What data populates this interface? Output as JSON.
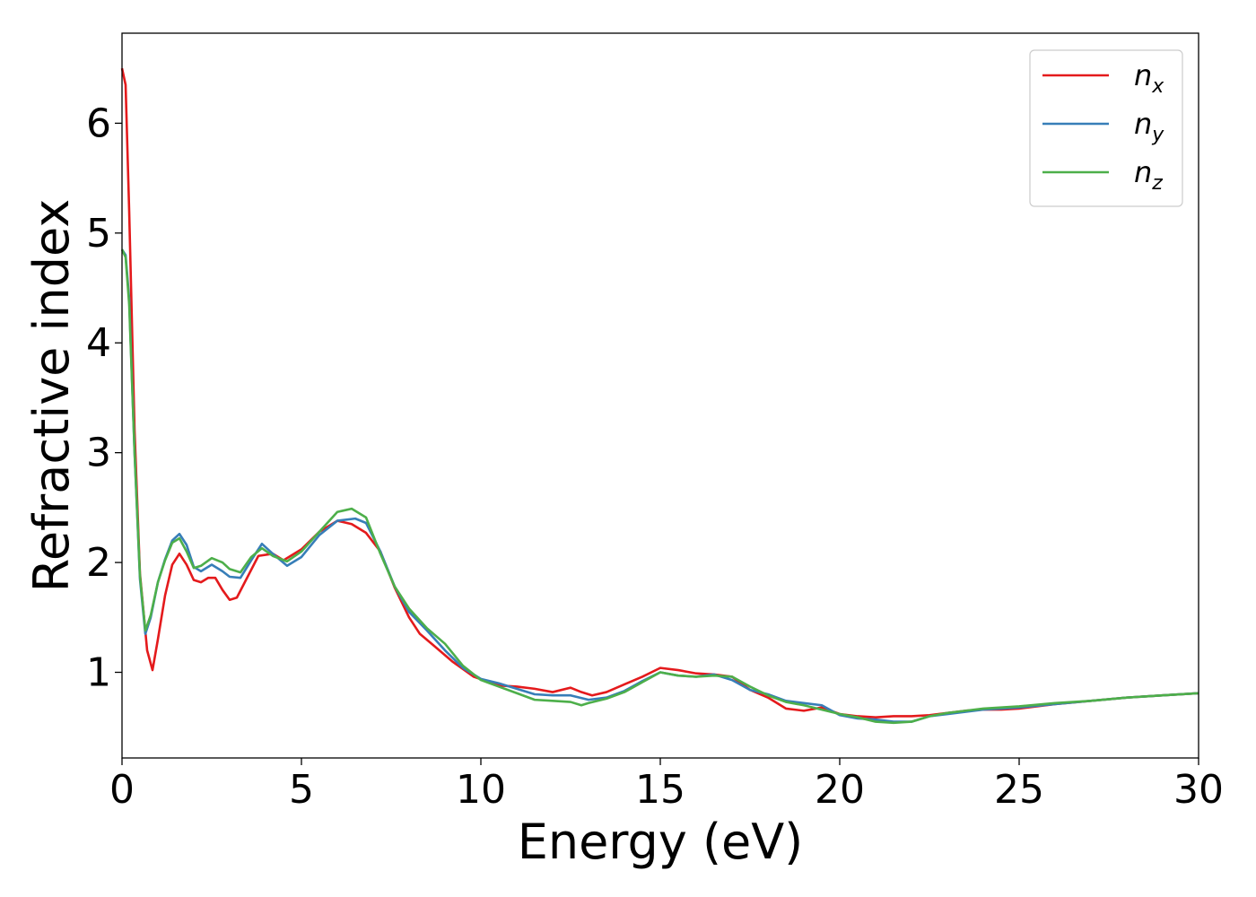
{
  "chart_data": {
    "type": "line",
    "title": "",
    "xlabel": "Energy (eV)",
    "ylabel": "Refractive index",
    "xlim": [
      0,
      30
    ],
    "ylim": [
      0.22,
      6.82
    ],
    "xticks": [
      0,
      5,
      10,
      15,
      20,
      25,
      30
    ],
    "yticks": [
      1,
      2,
      3,
      4,
      5,
      6
    ],
    "grid": false,
    "legend_position": "top-right",
    "series": [
      {
        "name": "n",
        "subscript": "x",
        "color": "#e41a1c",
        "points": [
          [
            0,
            6.5
          ],
          [
            0.1,
            6.35
          ],
          [
            0.2,
            5.2
          ],
          [
            0.35,
            3.2
          ],
          [
            0.5,
            1.9
          ],
          [
            0.7,
            1.2
          ],
          [
            0.85,
            1.02
          ],
          [
            1.0,
            1.3
          ],
          [
            1.2,
            1.7
          ],
          [
            1.4,
            1.98
          ],
          [
            1.6,
            2.08
          ],
          [
            1.8,
            1.98
          ],
          [
            2.0,
            1.84
          ],
          [
            2.2,
            1.82
          ],
          [
            2.4,
            1.86
          ],
          [
            2.6,
            1.86
          ],
          [
            2.8,
            1.75
          ],
          [
            3.0,
            1.66
          ],
          [
            3.2,
            1.68
          ],
          [
            3.5,
            1.87
          ],
          [
            3.8,
            2.06
          ],
          [
            4.2,
            2.08
          ],
          [
            4.5,
            2.02
          ],
          [
            5.0,
            2.12
          ],
          [
            5.5,
            2.28
          ],
          [
            6.0,
            2.38
          ],
          [
            6.4,
            2.35
          ],
          [
            6.8,
            2.27
          ],
          [
            7.2,
            2.1
          ],
          [
            7.6,
            1.77
          ],
          [
            8.0,
            1.5
          ],
          [
            8.3,
            1.35
          ],
          [
            8.7,
            1.24
          ],
          [
            9.2,
            1.1
          ],
          [
            9.8,
            0.96
          ],
          [
            10.5,
            0.88
          ],
          [
            11.0,
            0.87
          ],
          [
            11.5,
            0.85
          ],
          [
            12.0,
            0.82
          ],
          [
            12.5,
            0.86
          ],
          [
            12.8,
            0.82
          ],
          [
            13.1,
            0.79
          ],
          [
            13.5,
            0.82
          ],
          [
            14.0,
            0.89
          ],
          [
            14.5,
            0.96
          ],
          [
            15.0,
            1.04
          ],
          [
            15.5,
            1.02
          ],
          [
            16.0,
            0.99
          ],
          [
            16.5,
            0.98
          ],
          [
            17.0,
            0.96
          ],
          [
            17.5,
            0.84
          ],
          [
            18.0,
            0.77
          ],
          [
            18.5,
            0.67
          ],
          [
            19.0,
            0.65
          ],
          [
            19.5,
            0.68
          ],
          [
            20.0,
            0.62
          ],
          [
            20.5,
            0.6
          ],
          [
            21.0,
            0.59
          ],
          [
            21.5,
            0.6
          ],
          [
            22.0,
            0.6
          ],
          [
            22.5,
            0.61
          ],
          [
            23.0,
            0.63
          ],
          [
            23.5,
            0.65
          ],
          [
            24.0,
            0.66
          ],
          [
            24.5,
            0.66
          ],
          [
            25.0,
            0.67
          ],
          [
            26.0,
            0.71
          ],
          [
            27.0,
            0.74
          ],
          [
            28.0,
            0.77
          ],
          [
            29.0,
            0.79
          ],
          [
            30.0,
            0.81
          ]
        ]
      },
      {
        "name": "n",
        "subscript": "y",
        "color": "#377eb8",
        "points": [
          [
            0,
            4.85
          ],
          [
            0.1,
            4.8
          ],
          [
            0.2,
            4.4
          ],
          [
            0.35,
            3.0
          ],
          [
            0.5,
            1.85
          ],
          [
            0.65,
            1.35
          ],
          [
            0.8,
            1.5
          ],
          [
            1.0,
            1.82
          ],
          [
            1.2,
            2.03
          ],
          [
            1.4,
            2.2
          ],
          [
            1.6,
            2.26
          ],
          [
            1.8,
            2.16
          ],
          [
            2.0,
            1.96
          ],
          [
            2.2,
            1.92
          ],
          [
            2.5,
            1.98
          ],
          [
            2.8,
            1.92
          ],
          [
            3.0,
            1.87
          ],
          [
            3.3,
            1.86
          ],
          [
            3.6,
            2.02
          ],
          [
            3.9,
            2.17
          ],
          [
            4.2,
            2.08
          ],
          [
            4.6,
            1.97
          ],
          [
            5.0,
            2.05
          ],
          [
            5.5,
            2.25
          ],
          [
            6.0,
            2.38
          ],
          [
            6.5,
            2.4
          ],
          [
            6.8,
            2.36
          ],
          [
            7.2,
            2.1
          ],
          [
            7.6,
            1.78
          ],
          [
            8.0,
            1.55
          ],
          [
            8.5,
            1.38
          ],
          [
            9.0,
            1.2
          ],
          [
            9.5,
            1.04
          ],
          [
            10.0,
            0.94
          ],
          [
            10.5,
            0.9
          ],
          [
            11.0,
            0.85
          ],
          [
            11.5,
            0.8
          ],
          [
            12.0,
            0.79
          ],
          [
            12.5,
            0.79
          ],
          [
            13.0,
            0.75
          ],
          [
            13.5,
            0.77
          ],
          [
            14.0,
            0.83
          ],
          [
            14.5,
            0.92
          ],
          [
            15.0,
            1.0
          ],
          [
            15.5,
            0.97
          ],
          [
            16.0,
            0.96
          ],
          [
            16.5,
            0.98
          ],
          [
            17.0,
            0.93
          ],
          [
            17.5,
            0.84
          ],
          [
            18.0,
            0.8
          ],
          [
            18.5,
            0.74
          ],
          [
            19.0,
            0.72
          ],
          [
            19.5,
            0.7
          ],
          [
            20.0,
            0.61
          ],
          [
            20.5,
            0.58
          ],
          [
            21.0,
            0.57
          ],
          [
            21.5,
            0.55
          ],
          [
            22.0,
            0.55
          ],
          [
            22.5,
            0.6
          ],
          [
            23.0,
            0.62
          ],
          [
            23.5,
            0.64
          ],
          [
            24.0,
            0.66
          ],
          [
            24.5,
            0.67
          ],
          [
            25.0,
            0.68
          ],
          [
            26.0,
            0.71
          ],
          [
            27.0,
            0.74
          ],
          [
            28.0,
            0.77
          ],
          [
            29.0,
            0.79
          ],
          [
            30.0,
            0.81
          ]
        ]
      },
      {
        "name": "n",
        "subscript": "z",
        "color": "#4daf4a",
        "points": [
          [
            0,
            4.85
          ],
          [
            0.1,
            4.78
          ],
          [
            0.2,
            4.35
          ],
          [
            0.35,
            3.0
          ],
          [
            0.5,
            1.88
          ],
          [
            0.65,
            1.38
          ],
          [
            0.8,
            1.52
          ],
          [
            1.0,
            1.82
          ],
          [
            1.2,
            2.02
          ],
          [
            1.4,
            2.18
          ],
          [
            1.6,
            2.22
          ],
          [
            1.8,
            2.1
          ],
          [
            2.0,
            1.95
          ],
          [
            2.2,
            1.97
          ],
          [
            2.5,
            2.04
          ],
          [
            2.8,
            2.0
          ],
          [
            3.0,
            1.94
          ],
          [
            3.3,
            1.91
          ],
          [
            3.6,
            2.05
          ],
          [
            3.9,
            2.13
          ],
          [
            4.2,
            2.06
          ],
          [
            4.6,
            2.01
          ],
          [
            5.0,
            2.1
          ],
          [
            5.5,
            2.28
          ],
          [
            6.0,
            2.46
          ],
          [
            6.4,
            2.49
          ],
          [
            6.8,
            2.41
          ],
          [
            7.2,
            2.08
          ],
          [
            7.6,
            1.78
          ],
          [
            8.0,
            1.58
          ],
          [
            8.5,
            1.4
          ],
          [
            9.0,
            1.26
          ],
          [
            9.5,
            1.06
          ],
          [
            10.0,
            0.93
          ],
          [
            10.5,
            0.87
          ],
          [
            11.0,
            0.81
          ],
          [
            11.5,
            0.75
          ],
          [
            12.0,
            0.74
          ],
          [
            12.5,
            0.73
          ],
          [
            12.8,
            0.7
          ],
          [
            13.0,
            0.72
          ],
          [
            13.5,
            0.76
          ],
          [
            14.0,
            0.82
          ],
          [
            14.5,
            0.91
          ],
          [
            15.0,
            1.0
          ],
          [
            15.5,
            0.97
          ],
          [
            16.0,
            0.96
          ],
          [
            16.5,
            0.97
          ],
          [
            17.0,
            0.96
          ],
          [
            17.5,
            0.87
          ],
          [
            18.0,
            0.79
          ],
          [
            18.5,
            0.73
          ],
          [
            19.0,
            0.7
          ],
          [
            19.5,
            0.66
          ],
          [
            20.0,
            0.62
          ],
          [
            20.5,
            0.59
          ],
          [
            21.0,
            0.55
          ],
          [
            21.5,
            0.54
          ],
          [
            22.0,
            0.55
          ],
          [
            22.5,
            0.6
          ],
          [
            23.0,
            0.63
          ],
          [
            23.5,
            0.65
          ],
          [
            24.0,
            0.67
          ],
          [
            24.5,
            0.68
          ],
          [
            25.0,
            0.69
          ],
          [
            26.0,
            0.72
          ],
          [
            27.0,
            0.74
          ],
          [
            28.0,
            0.77
          ],
          [
            29.0,
            0.79
          ],
          [
            30.0,
            0.81
          ]
        ]
      }
    ]
  }
}
